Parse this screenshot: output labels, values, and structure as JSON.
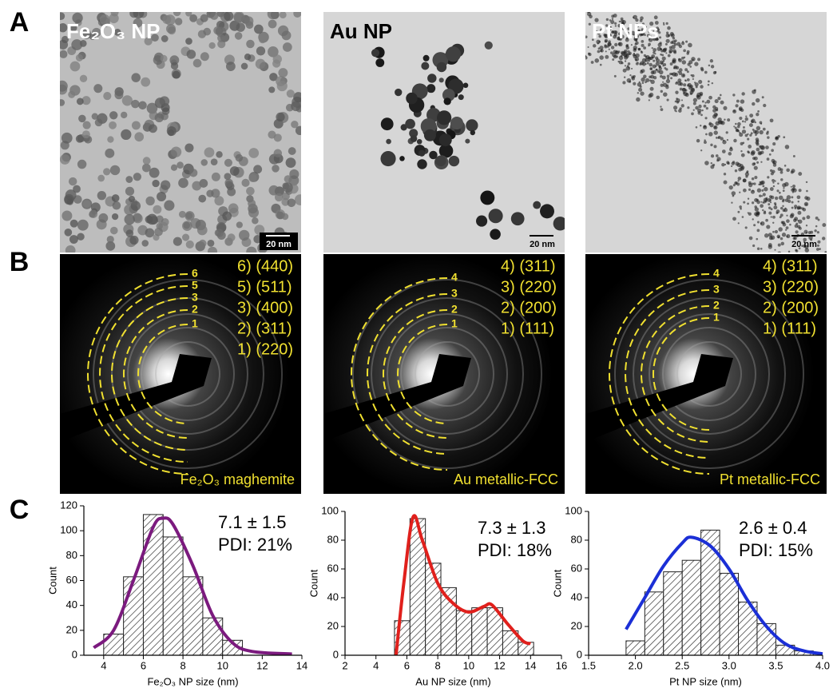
{
  "figure": {
    "panel_labels": [
      "A",
      "B",
      "C"
    ],
    "tem": [
      {
        "title": "Fe₂O₃ NP",
        "scale_bar": "20 nm"
      },
      {
        "title": "Au NP",
        "scale_bar": "20 nm"
      },
      {
        "title": "Pt NPs",
        "scale_bar": "20 nm"
      }
    ],
    "saed": [
      {
        "indices": [
          "6) (440)",
          "5) (511)",
          "3) (400)",
          "2) (311)",
          "1) (220)"
        ],
        "ring_numbers": [
          "6",
          "5",
          "3",
          "2",
          "1"
        ],
        "caption": "Fe₂O₃ maghemite"
      },
      {
        "indices": [
          "4) (311)",
          "3) (220)",
          "2) (200)",
          "1) (111)"
        ],
        "ring_numbers": [
          "4",
          "3",
          "2",
          "1"
        ],
        "caption": "Au metallic-FCC"
      },
      {
        "indices": [
          "4) (311)",
          "3) (220)",
          "2) (200)",
          "1) (111)"
        ],
        "ring_numbers": [
          "4",
          "3",
          "2",
          "1"
        ],
        "caption": "Pt metallic-FCC"
      }
    ]
  },
  "chart_data": [
    {
      "type": "histogram",
      "x_label": "Fe₂O₃ NP size (nm)",
      "y_label": "Count",
      "bins": [
        4,
        5,
        6,
        7,
        8,
        9,
        10,
        11
      ],
      "values": [
        17,
        63,
        113,
        95,
        63,
        30,
        12
      ],
      "fit": {
        "x": [
          3.5,
          4.5,
          5.5,
          6.5,
          7,
          7.5,
          8.5,
          9.5,
          10.5,
          11.5,
          13.5
        ],
        "values": [
          6,
          20,
          60,
          103,
          110,
          105,
          72,
          32,
          10,
          3,
          1
        ],
        "color": "#7b1a7e"
      },
      "annotations": [
        "7.1 ± 1.5",
        "PDI: 21%"
      ],
      "xlim": [
        3,
        14
      ],
      "ylim": [
        0,
        120
      ],
      "xticks": [
        4,
        6,
        8,
        10,
        12,
        14
      ],
      "yticks": [
        0,
        20,
        40,
        60,
        80,
        100,
        120
      ]
    },
    {
      "type": "histogram",
      "x_label": "Au NP size (nm)",
      "y_label": "Count",
      "bins": [
        5.2,
        6.2,
        7.2,
        8.2,
        9.2,
        10.2,
        11.2,
        12.2,
        13.2,
        14.2
      ],
      "values": [
        24,
        95,
        64,
        47,
        31,
        33,
        33,
        17,
        9
      ],
      "fit": {
        "x": [
          5.3,
          5.8,
          6.4,
          7,
          8,
          9,
          10,
          11,
          11.5,
          12.5,
          13.5,
          14
        ],
        "values": [
          0,
          50,
          96,
          80,
          50,
          36,
          30,
          34,
          35,
          22,
          10,
          8
        ],
        "color": "#e0201c"
      },
      "annotations": [
        "7.3 ± 1.3",
        "PDI: 18%"
      ],
      "xlim": [
        2,
        16
      ],
      "ylim": [
        0,
        100
      ],
      "xticks": [
        2,
        4,
        6,
        8,
        10,
        12,
        14,
        16
      ],
      "yticks": [
        0,
        20,
        40,
        60,
        80,
        100
      ]
    },
    {
      "type": "histogram",
      "x_label": "Pt NP size (nm)",
      "y_label": "Count",
      "bins": [
        1.9,
        2.1,
        2.3,
        2.5,
        2.7,
        2.9,
        3.1,
        3.3,
        3.5,
        3.7,
        3.9
      ],
      "values": [
        10,
        44,
        58,
        66,
        87,
        57,
        37,
        22,
        7,
        3
      ],
      "fit": {
        "x": [
          1.9,
          2.1,
          2.3,
          2.5,
          2.6,
          2.8,
          3.0,
          3.2,
          3.4,
          3.6,
          3.8,
          4.0
        ],
        "values": [
          18,
          40,
          62,
          78,
          82,
          76,
          60,
          38,
          20,
          8,
          3,
          1
        ],
        "color": "#1b2fd6"
      },
      "annotations": [
        "2.6 ± 0.4",
        "PDI: 15%"
      ],
      "xlim": [
        1.5,
        4.0
      ],
      "ylim": [
        0,
        100
      ],
      "xticks": [
        1.5,
        {
          "value": 2,
          "label": "2.0"
        },
        2.5,
        {
          "value": 3,
          "label": "3.0"
        },
        3.5,
        {
          "value": 4,
          "label": "4.0"
        }
      ],
      "yticks": [
        0,
        20,
        40,
        60,
        80,
        100
      ]
    }
  ]
}
